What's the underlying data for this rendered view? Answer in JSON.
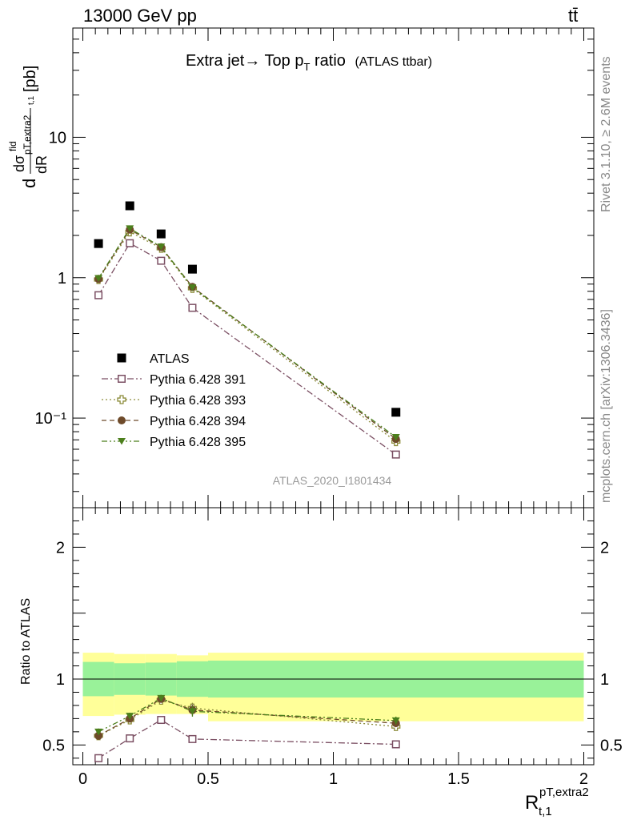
{
  "header": {
    "energy_label": "13000 GeV pp",
    "process_label": "tt̄"
  },
  "side_labels": {
    "rivet": "Rivet 3.1.10, ≥ 2.6M events",
    "mcplots": "mcplots.cern.ch [arXiv:1306.3436]"
  },
  "chart_data": [
    {
      "type": "scatter",
      "panel": "main",
      "title_main": "Extra jet→ Top p",
      "title_sub": "T",
      "title_tail": " ratio",
      "title_small": "(ATLAS ttbar)",
      "analysis_tag": "ATLAS_2020_I1801434",
      "ylabel": "dσ/dR [pb]",
      "ylabel_parts": {
        "d": "d",
        "dsigma": "dσ",
        "fid": "fid",
        "sub": "pT,extra2",
        "sub2": "t,1",
        "dR": "dR",
        "unit": "[pb]"
      },
      "y_scale": "log",
      "ylim": [
        0.023,
        60
      ],
      "xlim": [
        -0.04,
        2.04
      ],
      "y_tick_labels": [
        "10⁻¹",
        "1",
        "10"
      ],
      "y_ticks": [
        0.1,
        1,
        10
      ],
      "legend_position": "lower-left",
      "x": [
        0.0625,
        0.1875,
        0.3125,
        0.4375,
        1.25
      ],
      "xerr": [
        0.0625,
        0.0625,
        0.0625,
        0.0625,
        0.75
      ],
      "series": [
        {
          "name": "ATLAS",
          "color": "#000000",
          "marker": "filled-square",
          "values": [
            1.75,
            3.25,
            2.05,
            1.15,
            0.11
          ]
        },
        {
          "name": "Pythia 6.428 391",
          "color": "#7b4f63",
          "marker": "open-square",
          "line": "dash-dot",
          "values": [
            0.75,
            1.76,
            1.32,
            0.61,
            0.055
          ]
        },
        {
          "name": "Pythia 6.428 393",
          "color": "#8c8c3a",
          "marker": "open-cross",
          "line": "dot",
          "values": [
            0.97,
            2.12,
            1.62,
            0.84,
            0.068
          ]
        },
        {
          "name": "Pythia 6.428 394",
          "color": "#6e4a2a",
          "marker": "filled-circle",
          "line": "dash",
          "values": [
            0.98,
            2.2,
            1.65,
            0.86,
            0.071
          ]
        },
        {
          "name": "Pythia 6.428 395",
          "color": "#4c7f1c",
          "marker": "filled-triangle-down",
          "line": "dash-dot-dot",
          "values": [
            0.99,
            2.24,
            1.66,
            0.85,
            0.073
          ]
        }
      ]
    },
    {
      "type": "scatter",
      "panel": "ratio",
      "ylabel": "Ratio to ATLAS",
      "xlabel": "R",
      "xlabel_sup": "pT,extra2",
      "xlabel_sub": "t,1",
      "ylim": [
        0.35,
        2.3
      ],
      "xlim": [
        -0.04,
        2.04
      ],
      "x_ticks": [
        0,
        0.5,
        1,
        1.5,
        2
      ],
      "x_tick_labels": [
        "0",
        "0.5",
        "1",
        "1.5",
        "2"
      ],
      "y_ticks": [
        0.5,
        1,
        2
      ],
      "y_tick_labels": [
        "0.5",
        "1",
        "2"
      ],
      "bands": {
        "x_edges": [
          0,
          0.125,
          0.25,
          0.375,
          0.5,
          2.0
        ],
        "stat_lo": [
          0.87,
          0.88,
          0.875,
          0.865,
          0.86
        ],
        "stat_hi": [
          1.13,
          1.12,
          1.125,
          1.135,
          1.14
        ],
        "total_lo": [
          0.72,
          0.73,
          0.735,
          0.735,
          0.68
        ],
        "total_hi": [
          1.2,
          1.19,
          1.19,
          1.18,
          1.2
        ],
        "stat_color": "#99f299",
        "total_color": "#ffff99"
      },
      "series": [
        {
          "name": "Pythia 6.428 391",
          "color": "#7b4f63",
          "marker": "open-square",
          "line": "dash-dot",
          "values": [
            0.4,
            0.55,
            0.69,
            0.545,
            0.505
          ],
          "err": [
            0.02,
            0.02,
            0.02,
            0.025,
            0.025
          ]
        },
        {
          "name": "Pythia 6.428 393",
          "color": "#8c8c3a",
          "marker": "open-cross",
          "line": "dot",
          "values": [
            0.57,
            0.69,
            0.84,
            0.78,
            0.64
          ],
          "err": [
            0.025,
            0.025,
            0.025,
            0.04,
            0.03
          ]
        },
        {
          "name": "Pythia 6.428 394",
          "color": "#6e4a2a",
          "marker": "filled-circle",
          "line": "dash",
          "values": [
            0.57,
            0.7,
            0.85,
            0.765,
            0.665
          ],
          "err": [
            0.025,
            0.025,
            0.025,
            0.04,
            0.03
          ]
        },
        {
          "name": "Pythia 6.428 395",
          "color": "#4c7f1c",
          "marker": "filled-triangle-down",
          "line": "dash-dot-dot",
          "values": [
            0.6,
            0.72,
            0.855,
            0.755,
            0.685
          ],
          "err": [
            0.025,
            0.025,
            0.025,
            0.04,
            0.03
          ]
        }
      ]
    }
  ]
}
